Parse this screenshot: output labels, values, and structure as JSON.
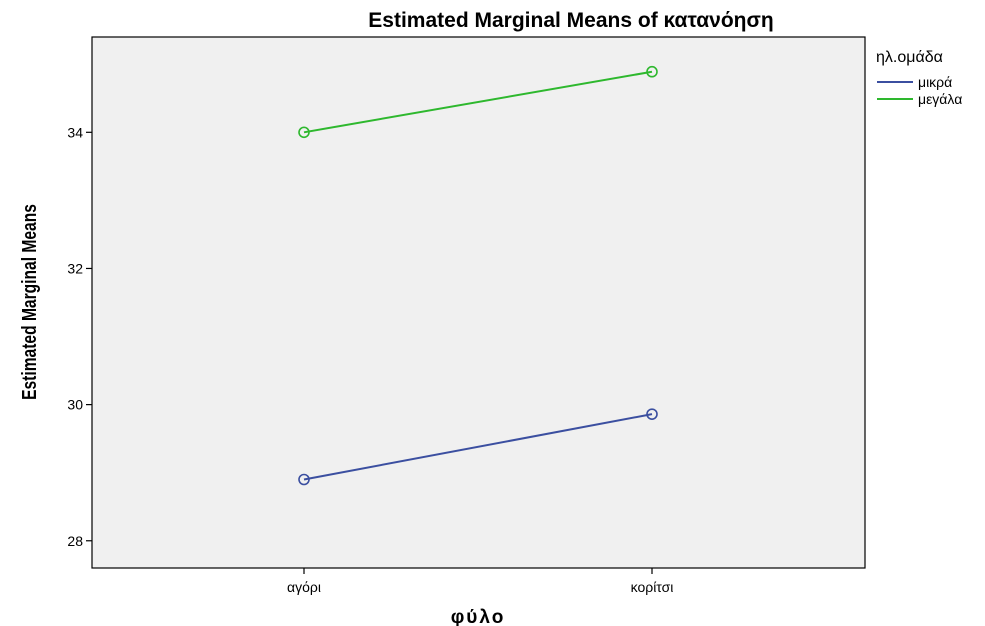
{
  "chart_data": {
    "type": "line",
    "title": "Estimated Marginal Means of κατανόηση",
    "xlabel": "φύλο",
    "ylabel": "Estimated Marginal Means",
    "categories": [
      "αγόρι",
      "κορίτσι"
    ],
    "ylim": [
      27.6,
      35.4
    ],
    "yticks": [
      28,
      30,
      32,
      34
    ],
    "grid": false,
    "legend_title": "ηλ.ομάδα",
    "legend_position": "right",
    "series": [
      {
        "name": "μικρά",
        "values": [
          28.9,
          29.86
        ],
        "color": "#3b4fa0"
      },
      {
        "name": "μεγάλα",
        "values": [
          34.0,
          34.89
        ],
        "color": "#2eb82e"
      }
    ],
    "plot_background": "#f0f0f0"
  }
}
